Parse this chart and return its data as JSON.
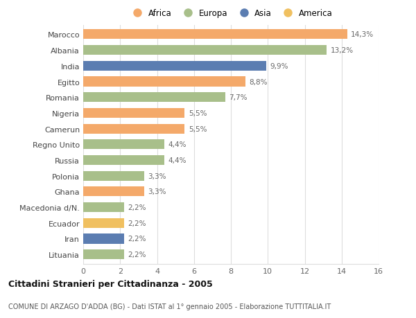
{
  "categories": [
    "Marocco",
    "Albania",
    "India",
    "Egitto",
    "Romania",
    "Nigeria",
    "Camerun",
    "Regno Unito",
    "Russia",
    "Polonia",
    "Ghana",
    "Macedonia d/N.",
    "Ecuador",
    "Iran",
    "Lituania"
  ],
  "values": [
    14.3,
    13.2,
    9.9,
    8.8,
    7.7,
    5.5,
    5.5,
    4.4,
    4.4,
    3.3,
    3.3,
    2.2,
    2.2,
    2.2,
    2.2
  ],
  "labels": [
    "14,3%",
    "13,2%",
    "9,9%",
    "8,8%",
    "7,7%",
    "5,5%",
    "5,5%",
    "4,4%",
    "4,4%",
    "3,3%",
    "3,3%",
    "2,2%",
    "2,2%",
    "2,2%",
    "2,2%"
  ],
  "colors": [
    "#F4A96A",
    "#A8BF8A",
    "#5B7DB1",
    "#F4A96A",
    "#A8BF8A",
    "#F4A96A",
    "#F4A96A",
    "#A8BF8A",
    "#A8BF8A",
    "#A8BF8A",
    "#F4A96A",
    "#A8BF8A",
    "#F0C060",
    "#5B7DB1",
    "#A8BF8A"
  ],
  "legend_labels": [
    "Africa",
    "Europa",
    "Asia",
    "America"
  ],
  "legend_colors": [
    "#F4A96A",
    "#A8BF8A",
    "#5B7DB1",
    "#F0C060"
  ],
  "title": "Cittadini Stranieri per Cittadinanza - 2005",
  "subtitle": "COMUNE DI ARZAGO D'ADDA (BG) - Dati ISTAT al 1° gennaio 2005 - Elaborazione TUTTITALIA.IT",
  "xlim": [
    0,
    16
  ],
  "xticks": [
    0,
    2,
    4,
    6,
    8,
    10,
    12,
    14,
    16
  ],
  "background_color": "#ffffff",
  "plot_bg_color": "#f9f9f9",
  "grid_color": "#dddddd",
  "label_color": "#666666",
  "title_color": "#111111",
  "subtitle_color": "#555555"
}
